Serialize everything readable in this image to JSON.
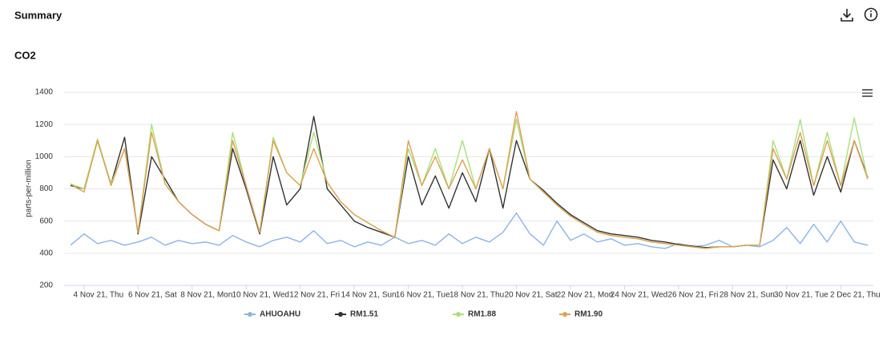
{
  "header": {
    "title": "Summary"
  },
  "chart_data": {
    "type": "line",
    "title": "CO2",
    "y_label": "parts-per-million",
    "categories": [
      null,
      "4 Nov 21, Thu",
      null,
      null,
      null,
      "6 Nov 21, Sat",
      null,
      null,
      null,
      "8 Nov 21, Mon",
      null,
      null,
      null,
      "10 Nov 21, Wed",
      null,
      null,
      null,
      "12 Nov 21, Fri",
      null,
      null,
      null,
      "14 Nov 21, Sun",
      null,
      null,
      null,
      "16 Nov 21, Tue",
      null,
      null,
      null,
      "18 Nov 21, Thu",
      null,
      null,
      null,
      "20 Nov 21, Sat",
      null,
      null,
      null,
      "22 Nov 21, Mon",
      null,
      null,
      null,
      "24 Nov 21, Wed",
      null,
      null,
      null,
      "26 Nov 21, Fri",
      null,
      null,
      null,
      "28 Nov 21, Sun",
      null,
      null,
      null,
      "30 Nov 21, Tue",
      null,
      null,
      null,
      "2 Dec 21, Thu",
      null,
      null
    ],
    "series": [
      {
        "name": "AHUOAHU",
        "color": "#8cb4e6",
        "values": [
          450,
          520,
          460,
          480,
          450,
          470,
          500,
          450,
          480,
          460,
          470,
          450,
          510,
          470,
          440,
          480,
          500,
          470,
          540,
          460,
          480,
          440,
          470,
          450,
          500,
          460,
          480,
          450,
          520,
          460,
          500,
          470,
          530,
          650,
          520,
          450,
          600,
          480,
          520,
          470,
          490,
          450,
          460,
          440,
          430,
          460,
          440,
          450,
          480,
          440,
          450,
          440,
          480,
          560,
          460,
          580,
          470,
          600,
          470,
          450
        ]
      },
      {
        "name": "RM1.51",
        "color": "#333333",
        "values": [
          820,
          800,
          1100,
          830,
          1120,
          520,
          1000,
          860,
          720,
          640,
          580,
          540,
          1050,
          800,
          520,
          1000,
          700,
          800,
          1250,
          800,
          700,
          600,
          560,
          530,
          500,
          1000,
          700,
          880,
          680,
          900,
          720,
          1050,
          680,
          1100,
          860,
          790,
          710,
          640,
          590,
          540,
          520,
          510,
          500,
          480,
          470,
          455,
          445,
          435,
          440,
          440,
          450,
          450,
          980,
          800,
          1100,
          760,
          1000,
          780,
          1100,
          870
        ]
      },
      {
        "name": "RM1.88",
        "color": "#a8e07c",
        "values": [
          830,
          800,
          1110,
          830,
          1050,
          530,
          1200,
          830,
          720,
          640,
          580,
          540,
          1150,
          820,
          530,
          1120,
          900,
          820,
          1150,
          840,
          720,
          640,
          590,
          540,
          500,
          1050,
          820,
          1050,
          800,
          1100,
          800,
          1050,
          800,
          1230,
          860,
          780,
          700,
          630,
          580,
          530,
          510,
          500,
          490,
          470,
          460,
          450,
          440,
          430,
          440,
          440,
          450,
          450,
          1100,
          860,
          1230,
          820,
          1150,
          820,
          1240,
          860
        ]
      },
      {
        "name": "RM1.90",
        "color": "#e0a052",
        "values": [
          830,
          780,
          1100,
          820,
          1050,
          530,
          1150,
          830,
          720,
          640,
          580,
          540,
          1100,
          820,
          530,
          1100,
          900,
          820,
          1050,
          840,
          720,
          640,
          590,
          540,
          500,
          1100,
          820,
          1000,
          800,
          980,
          800,
          1050,
          800,
          1280,
          860,
          780,
          700,
          630,
          580,
          530,
          510,
          500,
          490,
          470,
          460,
          450,
          440,
          430,
          440,
          440,
          450,
          450,
          1050,
          860,
          1150,
          820,
          1100,
          820,
          1100,
          860
        ]
      }
    ],
    "ylim": [
      200,
      1400
    ],
    "yticks": [
      200,
      400,
      600,
      800,
      1000,
      1200,
      1400
    ],
    "grid": true,
    "legend": "bottom"
  }
}
